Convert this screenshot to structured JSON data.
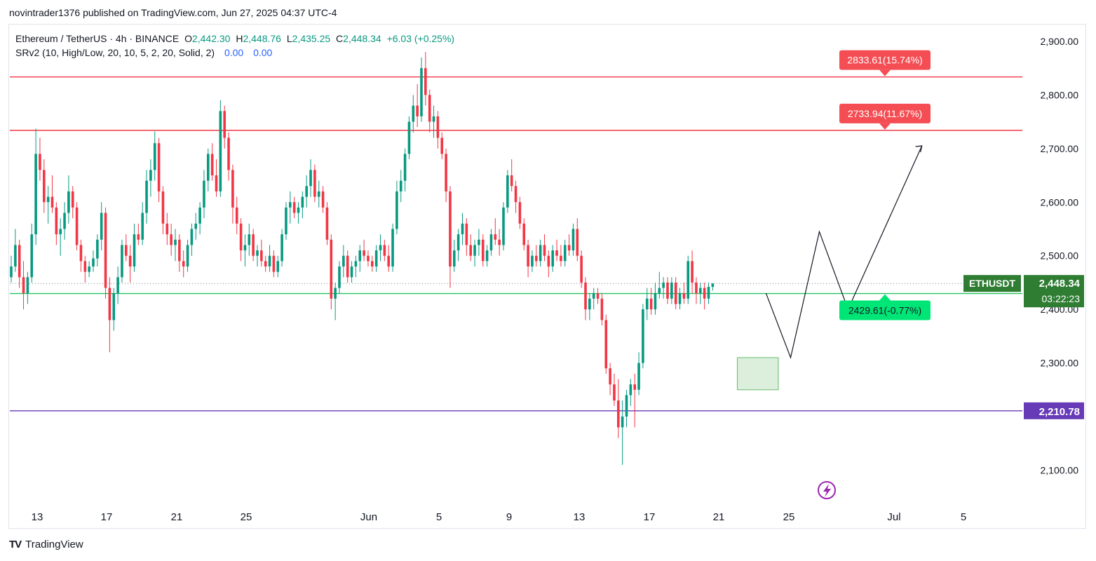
{
  "header": {
    "published": "novintrader1376 published on TradingView.com, Jun 27, 2025 04:37 UTC-4"
  },
  "legend": {
    "symbol": "Ethereum / TetherUS · 4h · BINANCE",
    "o_label": "O",
    "o_value": "2,442.30",
    "h_label": "H",
    "h_value": "2,448.76",
    "l_label": "L",
    "l_value": "2,435.25",
    "c_label": "C",
    "c_value": "2,448.34",
    "change": "+6.03 (+0.25%)",
    "indicator": "SRv2 (10, High/Low, 20, 10, 5, 2, 20, Solid, 2)",
    "ind_v1": "0.00",
    "ind_v2": "0.00"
  },
  "footer": {
    "brand": "TradingView",
    "logo": "TV"
  },
  "colors": {
    "up": "#089981",
    "down": "#f23645",
    "resistance": "#f23645",
    "support": "#22c55e",
    "baseline": "#673ab7",
    "price_label": "#2e7d32"
  },
  "chart_data": {
    "type": "candlestick",
    "symbol": "ETHUSDT",
    "ylim": [
      2030,
      2930
    ],
    "y_ticks": [
      "2,900.00",
      "2,800.00",
      "2,700.00",
      "2,600.00",
      "2,500.00",
      "2,400.00",
      "2,300.00",
      "2,100.00"
    ],
    "y_tick_values": [
      2900,
      2800,
      2700,
      2600,
      2500,
      2400,
      2300,
      2100
    ],
    "x_ticks": [
      "13",
      "17",
      "21",
      "25",
      "Jun",
      "5",
      "9",
      "13",
      "17",
      "21",
      "25",
      "Jul",
      "5"
    ],
    "current_price": {
      "label": "ETHUSDT",
      "value": 2448.34,
      "text": "2,448.34",
      "countdown": "03:22:23"
    },
    "horizontal_levels": [
      {
        "value": 2833.61,
        "label": "2833.61(15.74%)",
        "kind": "resistance"
      },
      {
        "value": 2733.94,
        "label": "2733.94(11.67%)",
        "kind": "resistance"
      },
      {
        "value": 2429.61,
        "label": "2429.61(-0.77%)",
        "kind": "support"
      },
      {
        "value": 2210.78,
        "label": "2,210.78",
        "kind": "baseline"
      }
    ],
    "zone": {
      "x_from": 177,
      "x_to": 187,
      "y_low": 2250,
      "y_high": 2310
    },
    "projection_path": [
      [
        184,
        2430
      ],
      [
        190,
        2310
      ],
      [
        197,
        2545
      ],
      [
        204,
        2400
      ],
      [
        222,
        2705
      ]
    ],
    "candles": [
      {
        "o": 2460,
        "h": 2500,
        "l": 2450,
        "c": 2480
      },
      {
        "o": 2480,
        "h": 2550,
        "l": 2470,
        "c": 2520
      },
      {
        "o": 2520,
        "h": 2530,
        "l": 2440,
        "c": 2460
      },
      {
        "o": 2460,
        "h": 2490,
        "l": 2400,
        "c": 2430
      },
      {
        "o": 2430,
        "h": 2470,
        "l": 2410,
        "c": 2460
      },
      {
        "o": 2460,
        "h": 2560,
        "l": 2450,
        "c": 2540
      },
      {
        "o": 2540,
        "h": 2737,
        "l": 2520,
        "c": 2690
      },
      {
        "o": 2690,
        "h": 2720,
        "l": 2640,
        "c": 2660
      },
      {
        "o": 2660,
        "h": 2680,
        "l": 2580,
        "c": 2600
      },
      {
        "o": 2600,
        "h": 2630,
        "l": 2560,
        "c": 2610
      },
      {
        "o": 2610,
        "h": 2650,
        "l": 2580,
        "c": 2590
      },
      {
        "o": 2590,
        "h": 2600,
        "l": 2520,
        "c": 2540
      },
      {
        "o": 2540,
        "h": 2570,
        "l": 2500,
        "c": 2550
      },
      {
        "o": 2550,
        "h": 2600,
        "l": 2530,
        "c": 2580
      },
      {
        "o": 2580,
        "h": 2650,
        "l": 2560,
        "c": 2620
      },
      {
        "o": 2620,
        "h": 2630,
        "l": 2570,
        "c": 2590
      },
      {
        "o": 2590,
        "h": 2600,
        "l": 2510,
        "c": 2520
      },
      {
        "o": 2520,
        "h": 2530,
        "l": 2470,
        "c": 2490
      },
      {
        "o": 2490,
        "h": 2500,
        "l": 2450,
        "c": 2470
      },
      {
        "o": 2470,
        "h": 2490,
        "l": 2460,
        "c": 2480
      },
      {
        "o": 2480,
        "h": 2510,
        "l": 2470,
        "c": 2495
      },
      {
        "o": 2495,
        "h": 2540,
        "l": 2480,
        "c": 2530
      },
      {
        "o": 2530,
        "h": 2600,
        "l": 2510,
        "c": 2580
      },
      {
        "o": 2580,
        "h": 2590,
        "l": 2420,
        "c": 2440
      },
      {
        "o": 2440,
        "h": 2460,
        "l": 2320,
        "c": 2380
      },
      {
        "o": 2380,
        "h": 2440,
        "l": 2360,
        "c": 2430
      },
      {
        "o": 2430,
        "h": 2480,
        "l": 2410,
        "c": 2460
      },
      {
        "o": 2460,
        "h": 2530,
        "l": 2450,
        "c": 2520
      },
      {
        "o": 2520,
        "h": 2540,
        "l": 2490,
        "c": 2500
      },
      {
        "o": 2500,
        "h": 2520,
        "l": 2450,
        "c": 2480
      },
      {
        "o": 2480,
        "h": 2560,
        "l": 2470,
        "c": 2540
      },
      {
        "o": 2540,
        "h": 2560,
        "l": 2520,
        "c": 2530
      },
      {
        "o": 2530,
        "h": 2600,
        "l": 2520,
        "c": 2580
      },
      {
        "o": 2580,
        "h": 2660,
        "l": 2560,
        "c": 2640
      },
      {
        "o": 2640,
        "h": 2680,
        "l": 2610,
        "c": 2660
      },
      {
        "o": 2660,
        "h": 2732,
        "l": 2640,
        "c": 2710
      },
      {
        "o": 2710,
        "h": 2720,
        "l": 2600,
        "c": 2620
      },
      {
        "o": 2620,
        "h": 2630,
        "l": 2540,
        "c": 2560
      },
      {
        "o": 2560,
        "h": 2580,
        "l": 2520,
        "c": 2540
      },
      {
        "o": 2540,
        "h": 2560,
        "l": 2500,
        "c": 2520
      },
      {
        "o": 2520,
        "h": 2550,
        "l": 2490,
        "c": 2530
      },
      {
        "o": 2530,
        "h": 2540,
        "l": 2470,
        "c": 2490
      },
      {
        "o": 2490,
        "h": 2510,
        "l": 2460,
        "c": 2480
      },
      {
        "o": 2480,
        "h": 2530,
        "l": 2470,
        "c": 2520
      },
      {
        "o": 2520,
        "h": 2560,
        "l": 2500,
        "c": 2550
      },
      {
        "o": 2550,
        "h": 2580,
        "l": 2530,
        "c": 2560
      },
      {
        "o": 2560,
        "h": 2600,
        "l": 2540,
        "c": 2590
      },
      {
        "o": 2590,
        "h": 2660,
        "l": 2570,
        "c": 2640
      },
      {
        "o": 2640,
        "h": 2700,
        "l": 2620,
        "c": 2690
      },
      {
        "o": 2690,
        "h": 2710,
        "l": 2640,
        "c": 2650
      },
      {
        "o": 2650,
        "h": 2680,
        "l": 2610,
        "c": 2620
      },
      {
        "o": 2620,
        "h": 2790,
        "l": 2610,
        "c": 2770
      },
      {
        "o": 2770,
        "h": 2780,
        "l": 2700,
        "c": 2720
      },
      {
        "o": 2720,
        "h": 2730,
        "l": 2640,
        "c": 2660
      },
      {
        "o": 2660,
        "h": 2670,
        "l": 2560,
        "c": 2590
      },
      {
        "o": 2590,
        "h": 2610,
        "l": 2540,
        "c": 2560
      },
      {
        "o": 2560,
        "h": 2570,
        "l": 2490,
        "c": 2510
      },
      {
        "o": 2510,
        "h": 2540,
        "l": 2480,
        "c": 2520
      },
      {
        "o": 2520,
        "h": 2560,
        "l": 2500,
        "c": 2540
      },
      {
        "o": 2540,
        "h": 2550,
        "l": 2490,
        "c": 2500
      },
      {
        "o": 2500,
        "h": 2520,
        "l": 2480,
        "c": 2510
      },
      {
        "o": 2510,
        "h": 2530,
        "l": 2480,
        "c": 2490
      },
      {
        "o": 2490,
        "h": 2500,
        "l": 2470,
        "c": 2480
      },
      {
        "o": 2480,
        "h": 2520,
        "l": 2470,
        "c": 2500
      },
      {
        "o": 2500,
        "h": 2510,
        "l": 2460,
        "c": 2470
      },
      {
        "o": 2470,
        "h": 2500,
        "l": 2460,
        "c": 2490
      },
      {
        "o": 2490,
        "h": 2550,
        "l": 2480,
        "c": 2540
      },
      {
        "o": 2540,
        "h": 2600,
        "l": 2530,
        "c": 2590
      },
      {
        "o": 2590,
        "h": 2620,
        "l": 2560,
        "c": 2600
      },
      {
        "o": 2600,
        "h": 2610,
        "l": 2570,
        "c": 2580
      },
      {
        "o": 2580,
        "h": 2600,
        "l": 2560,
        "c": 2590
      },
      {
        "o": 2590,
        "h": 2620,
        "l": 2570,
        "c": 2610
      },
      {
        "o": 2610,
        "h": 2650,
        "l": 2590,
        "c": 2630
      },
      {
        "o": 2630,
        "h": 2680,
        "l": 2610,
        "c": 2660
      },
      {
        "o": 2660,
        "h": 2670,
        "l": 2600,
        "c": 2610
      },
      {
        "o": 2610,
        "h": 2640,
        "l": 2590,
        "c": 2620
      },
      {
        "o": 2620,
        "h": 2630,
        "l": 2580,
        "c": 2590
      },
      {
        "o": 2590,
        "h": 2600,
        "l": 2520,
        "c": 2530
      },
      {
        "o": 2530,
        "h": 2540,
        "l": 2400,
        "c": 2420
      },
      {
        "o": 2420,
        "h": 2450,
        "l": 2380,
        "c": 2440
      },
      {
        "o": 2440,
        "h": 2490,
        "l": 2430,
        "c": 2480
      },
      {
        "o": 2480,
        "h": 2520,
        "l": 2460,
        "c": 2500
      },
      {
        "o": 2500,
        "h": 2510,
        "l": 2450,
        "c": 2460
      },
      {
        "o": 2460,
        "h": 2490,
        "l": 2450,
        "c": 2480
      },
      {
        "o": 2480,
        "h": 2500,
        "l": 2460,
        "c": 2490
      },
      {
        "o": 2490,
        "h": 2520,
        "l": 2470,
        "c": 2510
      },
      {
        "o": 2510,
        "h": 2530,
        "l": 2490,
        "c": 2500
      },
      {
        "o": 2500,
        "h": 2510,
        "l": 2480,
        "c": 2490
      },
      {
        "o": 2490,
        "h": 2500,
        "l": 2470,
        "c": 2480
      },
      {
        "o": 2480,
        "h": 2520,
        "l": 2470,
        "c": 2510
      },
      {
        "o": 2510,
        "h": 2540,
        "l": 2490,
        "c": 2520
      },
      {
        "o": 2520,
        "h": 2530,
        "l": 2490,
        "c": 2500
      },
      {
        "o": 2500,
        "h": 2520,
        "l": 2470,
        "c": 2480
      },
      {
        "o": 2480,
        "h": 2560,
        "l": 2470,
        "c": 2550
      },
      {
        "o": 2550,
        "h": 2640,
        "l": 2540,
        "c": 2620
      },
      {
        "o": 2620,
        "h": 2660,
        "l": 2600,
        "c": 2640
      },
      {
        "o": 2640,
        "h": 2700,
        "l": 2620,
        "c": 2690
      },
      {
        "o": 2690,
        "h": 2760,
        "l": 2680,
        "c": 2750
      },
      {
        "o": 2750,
        "h": 2800,
        "l": 2730,
        "c": 2780
      },
      {
        "o": 2780,
        "h": 2820,
        "l": 2740,
        "c": 2760
      },
      {
        "o": 2760,
        "h": 2870,
        "l": 2750,
        "c": 2850
      },
      {
        "o": 2850,
        "h": 2880,
        "l": 2780,
        "c": 2800
      },
      {
        "o": 2800,
        "h": 2810,
        "l": 2730,
        "c": 2750
      },
      {
        "o": 2750,
        "h": 2780,
        "l": 2720,
        "c": 2760
      },
      {
        "o": 2760,
        "h": 2770,
        "l": 2700,
        "c": 2720
      },
      {
        "o": 2720,
        "h": 2730,
        "l": 2680,
        "c": 2690
      },
      {
        "o": 2690,
        "h": 2700,
        "l": 2600,
        "c": 2620
      },
      {
        "o": 2620,
        "h": 2630,
        "l": 2440,
        "c": 2480
      },
      {
        "o": 2480,
        "h": 2530,
        "l": 2470,
        "c": 2510
      },
      {
        "o": 2510,
        "h": 2550,
        "l": 2490,
        "c": 2540
      },
      {
        "o": 2540,
        "h": 2580,
        "l": 2520,
        "c": 2560
      },
      {
        "o": 2560,
        "h": 2570,
        "l": 2500,
        "c": 2520
      },
      {
        "o": 2520,
        "h": 2540,
        "l": 2490,
        "c": 2500
      },
      {
        "o": 2500,
        "h": 2530,
        "l": 2480,
        "c": 2520
      },
      {
        "o": 2520,
        "h": 2550,
        "l": 2500,
        "c": 2530
      },
      {
        "o": 2530,
        "h": 2540,
        "l": 2480,
        "c": 2490
      },
      {
        "o": 2490,
        "h": 2520,
        "l": 2480,
        "c": 2510
      },
      {
        "o": 2510,
        "h": 2550,
        "l": 2500,
        "c": 2540
      },
      {
        "o": 2540,
        "h": 2570,
        "l": 2520,
        "c": 2530
      },
      {
        "o": 2530,
        "h": 2550,
        "l": 2500,
        "c": 2520
      },
      {
        "o": 2520,
        "h": 2600,
        "l": 2510,
        "c": 2590
      },
      {
        "o": 2590,
        "h": 2660,
        "l": 2580,
        "c": 2650
      },
      {
        "o": 2650,
        "h": 2680,
        "l": 2620,
        "c": 2630
      },
      {
        "o": 2630,
        "h": 2640,
        "l": 2580,
        "c": 2600
      },
      {
        "o": 2600,
        "h": 2610,
        "l": 2550,
        "c": 2560
      },
      {
        "o": 2560,
        "h": 2570,
        "l": 2510,
        "c": 2520
      },
      {
        "o": 2520,
        "h": 2530,
        "l": 2460,
        "c": 2480
      },
      {
        "o": 2480,
        "h": 2510,
        "l": 2470,
        "c": 2500
      },
      {
        "o": 2500,
        "h": 2520,
        "l": 2480,
        "c": 2490
      },
      {
        "o": 2490,
        "h": 2530,
        "l": 2480,
        "c": 2520
      },
      {
        "o": 2520,
        "h": 2540,
        "l": 2490,
        "c": 2500
      },
      {
        "o": 2500,
        "h": 2510,
        "l": 2460,
        "c": 2480
      },
      {
        "o": 2480,
        "h": 2520,
        "l": 2470,
        "c": 2510
      },
      {
        "o": 2510,
        "h": 2530,
        "l": 2490,
        "c": 2500
      },
      {
        "o": 2500,
        "h": 2520,
        "l": 2480,
        "c": 2490
      },
      {
        "o": 2490,
        "h": 2530,
        "l": 2480,
        "c": 2520
      },
      {
        "o": 2520,
        "h": 2540,
        "l": 2500,
        "c": 2510
      },
      {
        "o": 2510,
        "h": 2560,
        "l": 2500,
        "c": 2550
      },
      {
        "o": 2550,
        "h": 2570,
        "l": 2490,
        "c": 2500
      },
      {
        "o": 2500,
        "h": 2510,
        "l": 2440,
        "c": 2450
      },
      {
        "o": 2450,
        "h": 2460,
        "l": 2380,
        "c": 2400
      },
      {
        "o": 2400,
        "h": 2430,
        "l": 2380,
        "c": 2420
      },
      {
        "o": 2420,
        "h": 2440,
        "l": 2400,
        "c": 2430
      },
      {
        "o": 2430,
        "h": 2440,
        "l": 2410,
        "c": 2420
      },
      {
        "o": 2420,
        "h": 2430,
        "l": 2370,
        "c": 2380
      },
      {
        "o": 2380,
        "h": 2390,
        "l": 2280,
        "c": 2290
      },
      {
        "o": 2290,
        "h": 2300,
        "l": 2240,
        "c": 2260
      },
      {
        "o": 2260,
        "h": 2280,
        "l": 2220,
        "c": 2230
      },
      {
        "o": 2230,
        "h": 2270,
        "l": 2160,
        "c": 2180
      },
      {
        "o": 2180,
        "h": 2230,
        "l": 2110,
        "c": 2200
      },
      {
        "o": 2200,
        "h": 2250,
        "l": 2180,
        "c": 2240
      },
      {
        "o": 2240,
        "h": 2270,
        "l": 2220,
        "c": 2260
      },
      {
        "o": 2260,
        "h": 2280,
        "l": 2180,
        "c": 2250
      },
      {
        "o": 2250,
        "h": 2320,
        "l": 2240,
        "c": 2300
      },
      {
        "o": 2300,
        "h": 2410,
        "l": 2290,
        "c": 2400
      },
      {
        "o": 2400,
        "h": 2440,
        "l": 2380,
        "c": 2420
      },
      {
        "o": 2420,
        "h": 2440,
        "l": 2390,
        "c": 2400
      },
      {
        "o": 2400,
        "h": 2450,
        "l": 2390,
        "c": 2430
      },
      {
        "o": 2430,
        "h": 2470,
        "l": 2420,
        "c": 2440
      },
      {
        "o": 2440,
        "h": 2460,
        "l": 2420,
        "c": 2450
      },
      {
        "o": 2450,
        "h": 2460,
        "l": 2410,
        "c": 2420
      },
      {
        "o": 2420,
        "h": 2460,
        "l": 2410,
        "c": 2450
      },
      {
        "o": 2450,
        "h": 2460,
        "l": 2400,
        "c": 2410
      },
      {
        "o": 2410,
        "h": 2440,
        "l": 2400,
        "c": 2430
      },
      {
        "o": 2430,
        "h": 2450,
        "l": 2410,
        "c": 2420
      },
      {
        "o": 2420,
        "h": 2500,
        "l": 2410,
        "c": 2490
      },
      {
        "o": 2490,
        "h": 2510,
        "l": 2430,
        "c": 2450
      },
      {
        "o": 2450,
        "h": 2460,
        "l": 2410,
        "c": 2430
      },
      {
        "o": 2430,
        "h": 2450,
        "l": 2410,
        "c": 2440
      },
      {
        "o": 2440,
        "h": 2450,
        "l": 2400,
        "c": 2420
      },
      {
        "o": 2420,
        "h": 2450,
        "l": 2410,
        "c": 2442
      },
      {
        "o": 2442,
        "h": 2449,
        "l": 2435,
        "c": 2448
      }
    ]
  }
}
